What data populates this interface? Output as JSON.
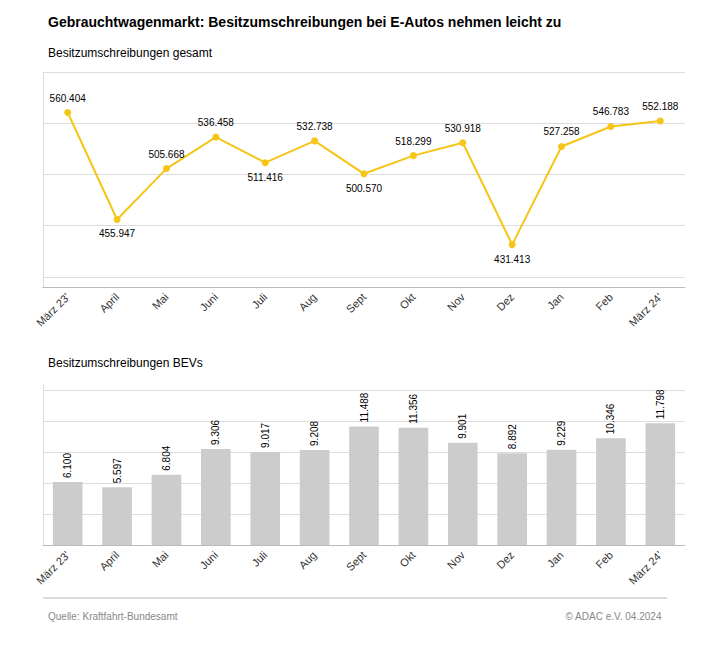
{
  "chart_data": [
    {
      "type": "line",
      "title": "Gebrauchtwagenmarkt: Besitzumschreibungen bei E-Autos nehmen leicht zu",
      "subtitle": "Besitzumschreibungen gesamt",
      "categories": [
        "März 23'",
        "April",
        "Mai",
        "Juni",
        "Juli",
        "Aug",
        "Sept",
        "Okt",
        "Nov",
        "Dez",
        "Jan",
        "Feb",
        "März 24'"
      ],
      "values": [
        560404,
        455947,
        505668,
        536458,
        511416,
        532738,
        500570,
        518299,
        530918,
        431413,
        527258,
        546783,
        552188
      ],
      "value_labels": [
        "560.404",
        "455.947",
        "505.668",
        "536.458",
        "511.416",
        "532.738",
        "500.570",
        "518.299",
        "530.918",
        "431.413",
        "527.258",
        "546.783",
        "552.188"
      ],
      "data_labels": true,
      "color": "#F5C518",
      "marker": "circle",
      "ylim": [
        390000,
        600000
      ],
      "yticks": [
        400000,
        450000,
        500000,
        550000,
        600000
      ],
      "grid": true,
      "tick_labels": "x"
    },
    {
      "type": "bar",
      "subtitle": "Besitzumschreibungen BEVs",
      "categories": [
        "März 23'",
        "April",
        "Mai",
        "Juni",
        "Juli",
        "Aug",
        "Sept",
        "Okt",
        "Nov",
        "Dez",
        "Jan",
        "Feb",
        "März 24'"
      ],
      "values": [
        6100,
        5597,
        6804,
        9306,
        9017,
        9208,
        11488,
        11356,
        9901,
        8892,
        9229,
        10346,
        11798
      ],
      "value_labels": [
        "6.100",
        "5.597",
        "6.804",
        "9.306",
        "9.017",
        "9.208",
        "11.488",
        "11.356",
        "9.901",
        "8.892",
        "9.229",
        "10.346",
        "11.798"
      ],
      "data_labels": true,
      "color": "#CCCCCC",
      "ylim": [
        0,
        15500
      ],
      "yticks": [
        0,
        3000,
        6000,
        9000,
        12000,
        15000
      ],
      "grid": true,
      "tick_labels": "x",
      "annotations": [
        "Quelle: Kraftfahrt-Bundesamt",
        "© ADAC e.V. 04.2024"
      ]
    }
  ]
}
